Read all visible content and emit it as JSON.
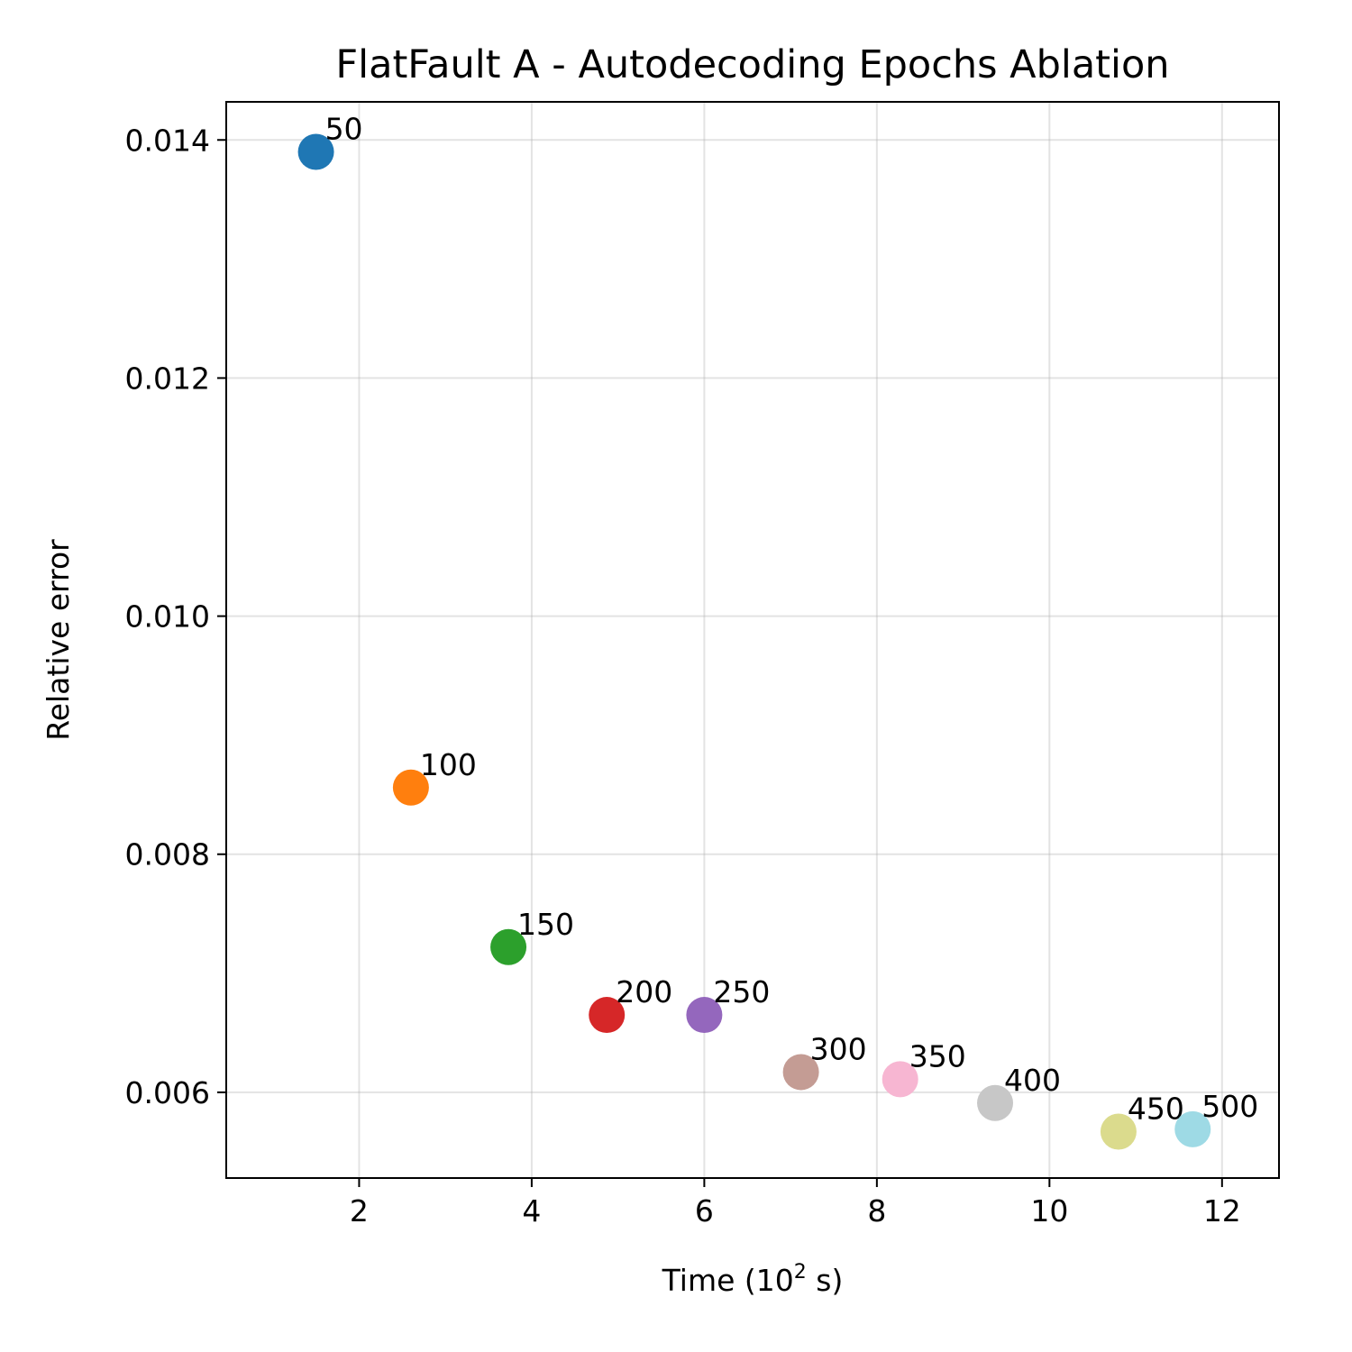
{
  "chart_data": {
    "type": "scatter",
    "title": "FlatFault A - Autodecoding Epochs Ablation",
    "xlabel": "Time (10",
    "xlabel_sup": "2",
    "xlabel_suffix": " s)",
    "ylabel": "Relative error",
    "xlim": [
      0.46,
      12.66
    ],
    "ylim": [
      0.00528,
      0.01432
    ],
    "xticks": [
      2,
      4,
      6,
      8,
      10,
      12
    ],
    "xtick_labels": [
      "2",
      "4",
      "6",
      "8",
      "10",
      "12"
    ],
    "yticks": [
      0.006,
      0.008,
      0.01,
      0.012,
      0.014
    ],
    "ytick_labels": [
      "0.006",
      "0.008",
      "0.010",
      "0.012",
      "0.014"
    ],
    "grid": true,
    "points": [
      {
        "label": "50",
        "x": 1.5,
        "y": 0.0139,
        "color": "#1f77b4"
      },
      {
        "label": "100",
        "x": 2.6,
        "y": 0.00856,
        "color": "#ff7f0e"
      },
      {
        "label": "150",
        "x": 3.73,
        "y": 0.00722,
        "color": "#2ca02c"
      },
      {
        "label": "200",
        "x": 4.87,
        "y": 0.00665,
        "color": "#d62728"
      },
      {
        "label": "250",
        "x": 6.0,
        "y": 0.00665,
        "color": "#9467bd"
      },
      {
        "label": "300",
        "x": 7.12,
        "y": 0.00617,
        "color": "#c49c94"
      },
      {
        "label": "350",
        "x": 8.27,
        "y": 0.00611,
        "color": "#f7b6d2"
      },
      {
        "label": "400",
        "x": 9.37,
        "y": 0.00591,
        "color": "#c7c7c7"
      },
      {
        "label": "450",
        "x": 10.8,
        "y": 0.00567,
        "color": "#dbdb8d"
      },
      {
        "label": "500",
        "x": 11.66,
        "y": 0.00569,
        "color": "#9edae5"
      }
    ]
  }
}
